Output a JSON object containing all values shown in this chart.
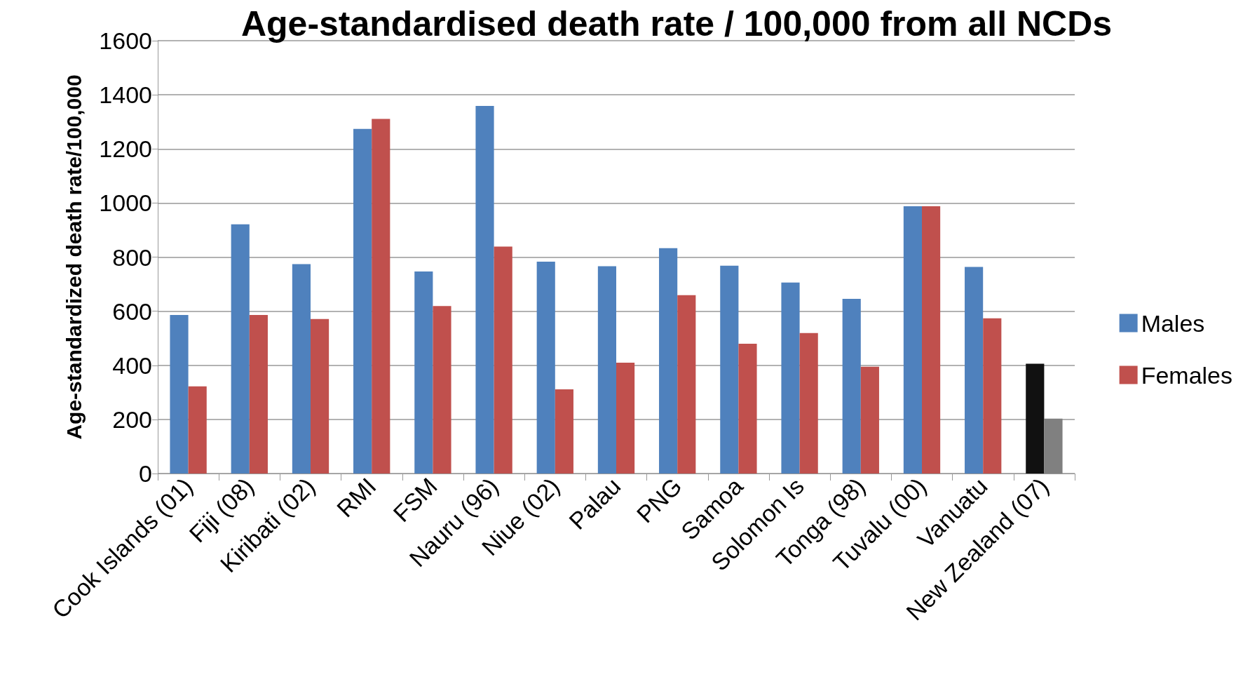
{
  "chart_data": {
    "type": "bar",
    "title": "Age-standardised death rate / 100,000 from all NCDs",
    "ylabel": "Age-standardized death rate/100,000",
    "categories": [
      "Cook Islands (01)",
      "Fiji (08)",
      "Kiribati (02)",
      "RMI",
      "FSM",
      "Nauru (96)",
      "Niue (02)",
      "Palau",
      "PNG",
      "Samoa",
      "Solomon Is",
      "Tonga (98)",
      "Tuvalu (00)",
      "Vanuatu",
      "New Zealand (07)"
    ],
    "series": [
      {
        "name": "Males",
        "color": "#4f81bd",
        "colors": [
          "#4f81bd",
          "#4f81bd",
          "#4f81bd",
          "#4f81bd",
          "#4f81bd",
          "#4f81bd",
          "#4f81bd",
          "#4f81bd",
          "#4f81bd",
          "#4f81bd",
          "#4f81bd",
          "#4f81bd",
          "#4f81bd",
          "#4f81bd",
          "#111111"
        ],
        "values": [
          586,
          921,
          774,
          1274,
          747,
          1359,
          783,
          766,
          833,
          768,
          706,
          646,
          988,
          764,
          406
        ]
      },
      {
        "name": "Females",
        "color": "#c0504d",
        "colors": [
          "#c0504d",
          "#c0504d",
          "#c0504d",
          "#c0504d",
          "#c0504d",
          "#c0504d",
          "#c0504d",
          "#c0504d",
          "#c0504d",
          "#c0504d",
          "#c0504d",
          "#c0504d",
          "#c0504d",
          "#c0504d",
          "#808080"
        ],
        "values": [
          322,
          586,
          571,
          1311,
          619,
          839,
          311,
          410,
          659,
          480,
          519,
          395,
          988,
          574,
          203
        ]
      }
    ],
    "ylim": [
      0,
      1600
    ],
    "yticks": [
      0,
      200,
      400,
      600,
      800,
      1000,
      1200,
      1400,
      1600
    ],
    "grid": "y",
    "legend": "right"
  }
}
